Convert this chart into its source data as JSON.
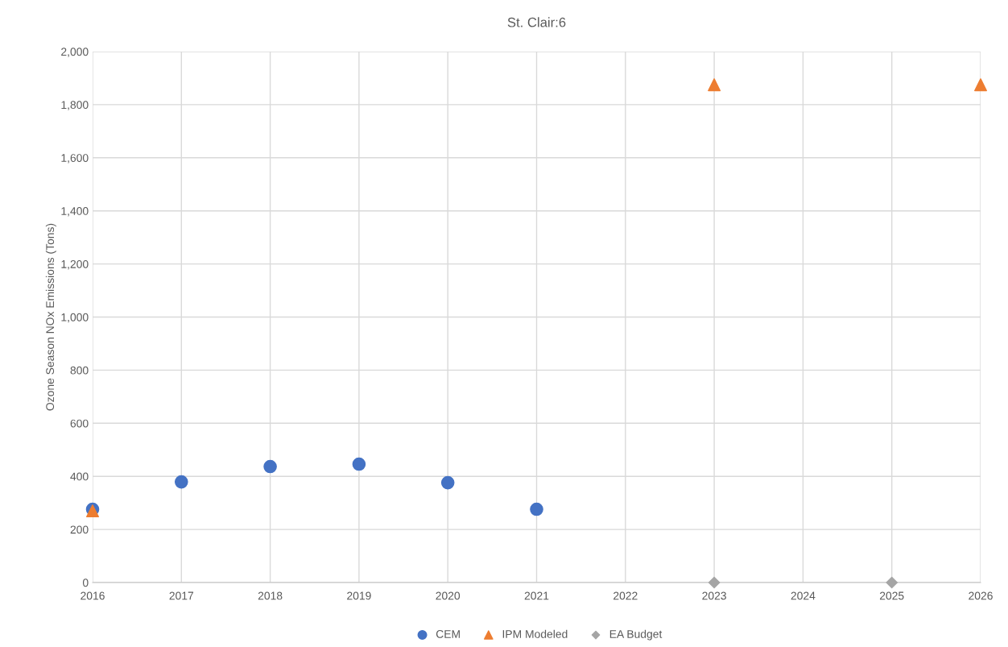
{
  "chart_data": {
    "type": "scatter",
    "title": "St. Clair:6",
    "ylabel": "Ozone Season NOx Emissions (Tons)",
    "xlim": [
      2016,
      2026
    ],
    "xticks": [
      2016,
      2017,
      2018,
      2019,
      2020,
      2021,
      2022,
      2023,
      2024,
      2025,
      2026
    ],
    "ylim": [
      0,
      2000
    ],
    "yticks": [
      0,
      {
        "value": 200,
        "label": "200"
      },
      {
        "value": 400,
        "label": "400"
      },
      {
        "value": 600,
        "label": "600"
      },
      {
        "value": 800,
        "label": "800"
      },
      {
        "value": 1000,
        "label": "1,000"
      },
      {
        "value": 1200,
        "label": "1,200"
      },
      {
        "value": 1400,
        "label": "1,400"
      },
      {
        "value": 1600,
        "label": "1,600"
      },
      {
        "value": 1800,
        "label": "1,800"
      },
      {
        "value": 2000,
        "label": "2,000"
      }
    ],
    "grid": true,
    "legend": "bottom",
    "series": [
      {
        "name": "CEM",
        "color": "#4472c4",
        "marker": "circle",
        "x": [
          2016,
          2017,
          2018,
          2019,
          2020,
          2021
        ],
        "values": [
          276,
          379,
          437,
          446,
          376,
          276
        ]
      },
      {
        "name": "IPM Modeled",
        "color": "#ed7d31",
        "marker": "triangle",
        "x": [
          2016,
          2023,
          2026
        ],
        "values": [
          270,
          1875,
          1875
        ]
      },
      {
        "name": "EA Budget",
        "color": "#a5a5a5",
        "marker": "diamond",
        "x": [
          2023,
          2025
        ],
        "values": [
          0,
          0
        ]
      }
    ]
  }
}
